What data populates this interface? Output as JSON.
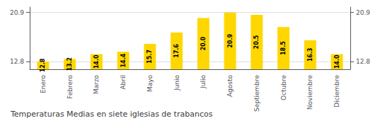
{
  "chart_data": {
    "type": "bar",
    "title": "Temperaturas Medias en siete iglesias de trabancos",
    "categories": [
      "Enero",
      "Febrero",
      "Marzo",
      "Abril",
      "Mayo",
      "Junio",
      "Julio",
      "Agosto",
      "Septiembre",
      "Octubre",
      "Noviembre",
      "Diciembre"
    ],
    "values": [
      12.8,
      13.2,
      14.0,
      14.4,
      15.7,
      17.6,
      20.0,
      20.9,
      20.5,
      18.5,
      16.3,
      14.0
    ],
    "value_labels": [
      "12.8",
      "13.2",
      "14.0",
      "14.4",
      "15.7",
      "17.6",
      "20.0",
      "20.9",
      "20.5",
      "18.5",
      "16.3",
      "14.0"
    ],
    "data_labels": true,
    "color": "#FFD700",
    "ylim": [
      11.5,
      21.8
    ],
    "yticks": [
      12.8,
      20.9
    ],
    "y2lim": [
      11.5,
      21.8
    ],
    "y2ticks": [
      12.8,
      20.9
    ],
    "grid": true
  }
}
